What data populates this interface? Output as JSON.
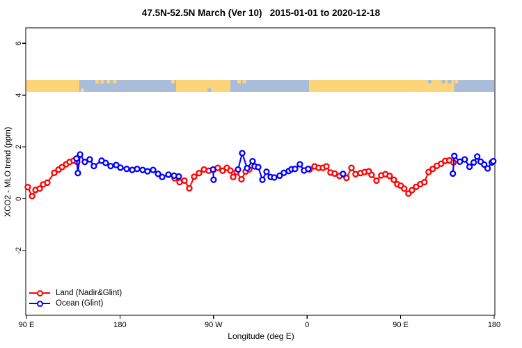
{
  "chart_data": {
    "type": "line",
    "title": "47.5N-52.5N March (Ver 10)   2015-01-01 to 2020-12-18",
    "xlabel": "Longitude (deg E)",
    "ylabel": "XCO2 - MLO trend (ppm)",
    "grid": "off",
    "legend_position": "bottom-left",
    "x_axis": {
      "range_deg_along_axis": [
        0,
        450
      ],
      "ticks": [
        {
          "label": "90 E",
          "deg": 0
        },
        {
          "label": "180",
          "deg": 90
        },
        {
          "label": "90 W",
          "deg": 180
        },
        {
          "label": "0",
          "deg": 270
        },
        {
          "label": "90 E",
          "deg": 360
        },
        {
          "label": "180",
          "deg": 450
        }
      ]
    },
    "y_axis": {
      "range": [
        -4.5,
        6.6
      ],
      "ticks": [
        -2,
        0,
        2,
        4,
        6
      ]
    },
    "series": [
      {
        "name": "Land (Nadir&Glint)",
        "color": "#ff0000",
        "marker": "open-circle",
        "segments": [
          [
            [
              1.3,
              0.45
            ],
            [
              5.4,
              0.1
            ],
            [
              8.7,
              0.34
            ],
            [
              12.7,
              0.39
            ],
            [
              16.1,
              0.55
            ],
            [
              20.1,
              0.62
            ],
            [
              26.8,
              1.0
            ],
            [
              30.8,
              1.12
            ],
            [
              34.2,
              1.22
            ],
            [
              38.2,
              1.33
            ],
            [
              41.5,
              1.42
            ],
            [
              45.5,
              1.47
            ],
            [
              48.9,
              1.42
            ]
          ],
          [
            [
              142.6,
              0.79
            ],
            [
              147.3,
              0.64
            ],
            [
              152.0,
              0.7
            ],
            [
              156.7,
              0.4
            ],
            [
              161.4,
              0.85
            ],
            [
              166.1,
              0.99
            ],
            [
              170.8,
              1.13
            ],
            [
              175.4,
              1.08
            ],
            [
              180.1,
              1.12
            ],
            [
              184.1,
              1.19
            ],
            [
              188.8,
              1.08
            ],
            [
              192.8,
              1.19
            ],
            [
              196.2,
              1.09
            ],
            [
              198.9,
              0.84
            ],
            [
              202.2,
              1.03
            ],
            [
              206.9,
              0.75
            ],
            [
              210.9,
              1.05
            ],
            [
              214.3,
              1.13
            ]
          ],
          [
            [
              272.5,
              1.13
            ],
            [
              277.2,
              1.25
            ],
            [
              281.2,
              1.19
            ],
            [
              285.2,
              1.19
            ],
            [
              288.6,
              1.25
            ],
            [
              292.6,
              1.01
            ],
            [
              296.6,
              0.97
            ],
            [
              301.3,
              0.88
            ],
            [
              308.0,
              0.8
            ],
            [
              312.7,
              1.19
            ],
            [
              316.7,
              0.95
            ],
            [
              321.4,
              0.99
            ],
            [
              325.4,
              1.03
            ],
            [
              329.4,
              1.06
            ],
            [
              332.1,
              0.92
            ],
            [
              336.8,
              0.7
            ],
            [
              341.4,
              0.9
            ],
            [
              345.4,
              0.95
            ],
            [
              349.5,
              0.88
            ],
            [
              353.5,
              0.73
            ],
            [
              356.8,
              0.56
            ],
            [
              360.2,
              0.5
            ],
            [
              363.5,
              0.39
            ],
            [
              367.5,
              0.2
            ],
            [
              370.9,
              0.33
            ],
            [
              374.9,
              0.46
            ],
            [
              378.9,
              0.56
            ],
            [
              382.9,
              0.64
            ],
            [
              386.9,
              1.03
            ],
            [
              390.9,
              1.15
            ],
            [
              394.9,
              1.27
            ],
            [
              398.9,
              1.35
            ],
            [
              402.9,
              1.46
            ],
            [
              406.9,
              1.48
            ],
            [
              410.9,
              1.4
            ]
          ]
        ]
      },
      {
        "name": "Ocean (Glint)",
        "color": "#0000ff",
        "marker": "open-circle",
        "segments": [
          [
            [
              48.2,
              1.55
            ],
            [
              49.5,
              0.99
            ],
            [
              51.6,
              1.71
            ],
            [
              56.2,
              1.42
            ],
            [
              60.9,
              1.52
            ],
            [
              64.9,
              1.26
            ],
            [
              72.3,
              1.47
            ],
            [
              76.3,
              1.38
            ],
            [
              81.0,
              1.26
            ],
            [
              86.4,
              1.3
            ],
            [
              90.4,
              1.2
            ],
            [
              96.4,
              1.15
            ],
            [
              101.8,
              1.11
            ],
            [
              106.5,
              1.15
            ],
            [
              111.8,
              1.11
            ],
            [
              116.5,
              1.06
            ],
            [
              121.9,
              1.11
            ],
            [
              126.6,
              0.96
            ],
            [
              130.6,
              0.84
            ],
            [
              136.6,
              0.93
            ],
            [
              142.0,
              0.89
            ],
            [
              146.6,
              0.86
            ]
          ],
          [
            [
              179.5,
              1.13
            ],
            [
              180.1,
              0.73
            ]
          ],
          [
            [
              203.6,
              1.13
            ],
            [
              207.6,
              1.76
            ],
            [
              212.3,
              1.18
            ],
            [
              217.6,
              1.45
            ],
            [
              219.6,
              1.25
            ],
            [
              223.0,
              1.22
            ],
            [
              227.0,
              0.73
            ],
            [
              231.0,
              1.04
            ],
            [
              235.0,
              0.84
            ],
            [
              238.4,
              0.82
            ],
            [
              243.7,
              0.89
            ],
            [
              247.7,
              1.0
            ],
            [
              252.4,
              1.07
            ],
            [
              255.1,
              1.14
            ],
            [
              258.4,
              1.15
            ],
            [
              263.1,
              1.33
            ],
            [
              267.1,
              1.09
            ],
            [
              271.1,
              1.15
            ]
          ],
          [
            [
              304.6,
              0.96
            ]
          ],
          [
            [
              410.3,
              0.97
            ],
            [
              411.6,
              1.65
            ],
            [
              417.0,
              1.43
            ],
            [
              421.7,
              1.52
            ],
            [
              426.3,
              1.23
            ],
            [
              430.4,
              1.4
            ],
            [
              433.7,
              1.63
            ],
            [
              437.0,
              1.43
            ],
            [
              440.4,
              1.32
            ],
            [
              443.7,
              1.17
            ],
            [
              447.7,
              1.4
            ],
            [
              449.1,
              1.45
            ]
          ]
        ]
      }
    ],
    "land_ocean_band": {
      "y_range": [
        4.12,
        4.58
      ],
      "land_color": "#fcd479",
      "ocean_color": "#a9bddb",
      "segments": [
        {
          "type": "land",
          "from": 0,
          "to": 50.9
        },
        {
          "type": "ocean",
          "from": 50.9,
          "to": 143.9
        },
        {
          "type": "land",
          "from": 143.9,
          "to": 196.2
        },
        {
          "type": "ocean",
          "from": 196.2,
          "to": 271.8
        },
        {
          "type": "land",
          "from": 271.8,
          "to": 411.6
        },
        {
          "type": "ocean",
          "from": 411.6,
          "to": 450
        }
      ],
      "speckles": [
        {
          "deg": 54,
          "type": "land",
          "edge": "bottom"
        },
        {
          "deg": 68,
          "type": "land",
          "edge": "top"
        },
        {
          "deg": 73,
          "type": "land",
          "edge": "top"
        },
        {
          "deg": 79,
          "type": "land",
          "edge": "top"
        },
        {
          "deg": 85,
          "type": "land",
          "edge": "top"
        },
        {
          "deg": 141,
          "type": "land",
          "edge": "top"
        },
        {
          "deg": 146.5,
          "type": "land",
          "edge": "top"
        },
        {
          "deg": 176,
          "type": "ocean",
          "edge": "bottom"
        },
        {
          "deg": 204.5,
          "type": "land",
          "edge": "top"
        },
        {
          "deg": 209.5,
          "type": "land",
          "edge": "top"
        },
        {
          "deg": 388,
          "type": "ocean",
          "edge": "top"
        },
        {
          "deg": 401,
          "type": "ocean",
          "edge": "top"
        },
        {
          "deg": 407,
          "type": "ocean",
          "edge": "top"
        },
        {
          "deg": 414,
          "type": "land",
          "edge": "top"
        }
      ]
    }
  },
  "legend": {
    "items": [
      {
        "label": "Land (Nadir&Glint)",
        "color": "#ff0000"
      },
      {
        "label": "Ocean (Glint)",
        "color": "#0000ff"
      }
    ]
  }
}
